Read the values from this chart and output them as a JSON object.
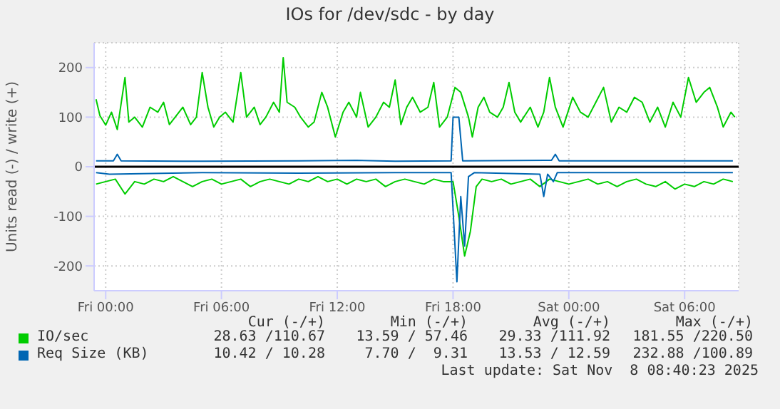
{
  "chart_data": {
    "type": "line",
    "title": "IOs for /dev/sdc - by day",
    "ylabel": "Units read (-) / write (+)",
    "xlim": [
      "2025-11-06T23:24",
      "2025-11-08T08:48"
    ],
    "xticks": [
      {
        "value": "2025-11-07T00:00",
        "label": "Fri 00:00"
      },
      {
        "value": "2025-11-07T06:00",
        "label": "Fri 06:00"
      },
      {
        "value": "2025-11-07T12:00",
        "label": "Fri 12:00"
      },
      {
        "value": "2025-11-07T18:00",
        "label": "Fri 18:00"
      },
      {
        "value": "2025-11-08T00:00",
        "label": "Sat 00:00"
      },
      {
        "value": "2025-11-08T06:00",
        "label": "Sat 06:00"
      }
    ],
    "ylim": [
      -250,
      250
    ],
    "yticks": [
      -200,
      -100,
      0,
      100,
      200
    ],
    "grid": true,
    "legend": "bottom",
    "ref_lines": [
      {
        "axis": "y",
        "value": 0,
        "color": "#000000"
      }
    ],
    "series": [
      {
        "name": "IO/sec",
        "color": "#00cc00",
        "x": [
          "2025-11-06T23:30",
          "2025-11-06T23:42",
          "2025-11-07T00:00",
          "2025-11-07T00:18",
          "2025-11-07T00:36",
          "2025-11-07T01:00",
          "2025-11-07T01:12",
          "2025-11-07T01:30",
          "2025-11-07T01:54",
          "2025-11-07T02:18",
          "2025-11-07T02:42",
          "2025-11-07T03:00",
          "2025-11-07T03:18",
          "2025-11-07T03:36",
          "2025-11-07T04:00",
          "2025-11-07T04:24",
          "2025-11-07T04:42",
          "2025-11-07T05:00",
          "2025-11-07T05:18",
          "2025-11-07T05:36",
          "2025-11-07T05:54",
          "2025-11-07T06:12",
          "2025-11-07T06:36",
          "2025-11-07T07:00",
          "2025-11-07T07:18",
          "2025-11-07T07:42",
          "2025-11-07T08:00",
          "2025-11-07T08:18",
          "2025-11-07T08:42",
          "2025-11-07T09:00",
          "2025-11-07T09:12",
          "2025-11-07T09:24",
          "2025-11-07T09:48",
          "2025-11-07T10:06",
          "2025-11-07T10:30",
          "2025-11-07T10:48",
          "2025-11-07T11:12",
          "2025-11-07T11:30",
          "2025-11-07T11:54",
          "2025-11-07T12:18",
          "2025-11-07T12:36",
          "2025-11-07T13:00",
          "2025-11-07T13:12",
          "2025-11-07T13:36",
          "2025-11-07T14:00",
          "2025-11-07T14:24",
          "2025-11-07T14:42",
          "2025-11-07T15:00",
          "2025-11-07T15:18",
          "2025-11-07T15:36",
          "2025-11-07T15:54",
          "2025-11-07T16:18",
          "2025-11-07T16:42",
          "2025-11-07T17:00",
          "2025-11-07T17:18",
          "2025-11-07T17:42",
          "2025-11-07T18:06",
          "2025-11-07T18:24",
          "2025-11-07T18:48",
          "2025-11-07T19:00",
          "2025-11-07T19:18",
          "2025-11-07T19:36",
          "2025-11-07T19:54",
          "2025-11-07T20:18",
          "2025-11-07T20:36",
          "2025-11-07T20:54",
          "2025-11-07T21:12",
          "2025-11-07T21:30",
          "2025-11-07T22:00",
          "2025-11-07T22:24",
          "2025-11-07T22:42",
          "2025-11-07T23:00",
          "2025-11-07T23:18",
          "2025-11-07T23:42",
          "2025-11-08T00:12",
          "2025-11-08T00:36",
          "2025-11-08T01:00",
          "2025-11-08T01:24",
          "2025-11-08T01:48",
          "2025-11-08T02:12",
          "2025-11-08T02:36",
          "2025-11-08T03:00",
          "2025-11-08T03:24",
          "2025-11-08T03:48",
          "2025-11-08T04:12",
          "2025-11-08T04:36",
          "2025-11-08T05:00",
          "2025-11-08T05:24",
          "2025-11-08T05:48",
          "2025-11-08T06:12",
          "2025-11-08T06:36",
          "2025-11-08T07:00",
          "2025-11-08T07:18",
          "2025-11-08T07:42",
          "2025-11-08T08:00",
          "2025-11-08T08:24",
          "2025-11-08T08:36"
        ],
        "values": [
          136,
          103,
          84,
          110,
          75,
          180,
          90,
          100,
          80,
          120,
          110,
          130,
          85,
          100,
          120,
          85,
          100,
          190,
          120,
          80,
          100,
          110,
          90,
          190,
          100,
          120,
          85,
          100,
          130,
          110,
          220,
          130,
          120,
          100,
          80,
          90,
          150,
          120,
          60,
          110,
          130,
          100,
          150,
          80,
          100,
          130,
          120,
          175,
          85,
          120,
          140,
          110,
          120,
          170,
          80,
          100,
          160,
          150,
          100,
          60,
          120,
          140,
          110,
          100,
          120,
          170,
          110,
          90,
          120,
          80,
          110,
          180,
          120,
          80,
          140,
          110,
          100,
          130,
          160,
          90,
          120,
          110,
          140,
          130,
          90,
          120,
          80,
          130,
          100,
          180,
          130,
          150,
          160,
          120,
          80,
          110,
          100
        ]
      },
      {
        "color": "#00cc00",
        "x": [
          "2025-11-06T23:30",
          "2025-11-07T00:00",
          "2025-11-07T00:30",
          "2025-11-07T01:00",
          "2025-11-07T01:30",
          "2025-11-07T02:00",
          "2025-11-07T02:30",
          "2025-11-07T03:00",
          "2025-11-07T03:30",
          "2025-11-07T04:00",
          "2025-11-07T04:30",
          "2025-11-07T05:00",
          "2025-11-07T05:30",
          "2025-11-07T06:00",
          "2025-11-07T06:30",
          "2025-11-07T07:00",
          "2025-11-07T07:30",
          "2025-11-07T08:00",
          "2025-11-07T08:30",
          "2025-11-07T09:00",
          "2025-11-07T09:30",
          "2025-11-07T10:00",
          "2025-11-07T10:30",
          "2025-11-07T11:00",
          "2025-11-07T11:30",
          "2025-11-07T12:00",
          "2025-11-07T12:30",
          "2025-11-07T13:00",
          "2025-11-07T13:30",
          "2025-11-07T14:00",
          "2025-11-07T14:30",
          "2025-11-07T15:00",
          "2025-11-07T15:30",
          "2025-11-07T16:00",
          "2025-11-07T16:30",
          "2025-11-07T17:00",
          "2025-11-07T17:30",
          "2025-11-07T18:00",
          "2025-11-07T18:18",
          "2025-11-07T18:36",
          "2025-11-07T18:54",
          "2025-11-07T19:12",
          "2025-11-07T19:30",
          "2025-11-07T20:00",
          "2025-11-07T20:30",
          "2025-11-07T21:00",
          "2025-11-07T21:30",
          "2025-11-07T22:00",
          "2025-11-07T22:30",
          "2025-11-07T23:00",
          "2025-11-07T23:30",
          "2025-11-08T00:00",
          "2025-11-08T00:30",
          "2025-11-08T01:00",
          "2025-11-08T01:30",
          "2025-11-08T02:00",
          "2025-11-08T02:30",
          "2025-11-08T03:00",
          "2025-11-08T03:30",
          "2025-11-08T04:00",
          "2025-11-08T04:30",
          "2025-11-08T05:00",
          "2025-11-08T05:30",
          "2025-11-08T06:00",
          "2025-11-08T06:30",
          "2025-11-08T07:00",
          "2025-11-08T07:30",
          "2025-11-08T08:00",
          "2025-11-08T08:30"
        ],
        "values": [
          -35,
          -30,
          -25,
          -55,
          -30,
          -35,
          -25,
          -30,
          -20,
          -30,
          -40,
          -30,
          -25,
          -35,
          -30,
          -25,
          -40,
          -30,
          -25,
          -30,
          -35,
          -25,
          -30,
          -20,
          -30,
          -25,
          -35,
          -25,
          -30,
          -25,
          -40,
          -30,
          -25,
          -30,
          -35,
          -25,
          -30,
          -30,
          -100,
          -180,
          -130,
          -40,
          -25,
          -30,
          -25,
          -35,
          -30,
          -25,
          -40,
          -25,
          -30,
          -35,
          -30,
          -25,
          -35,
          -30,
          -40,
          -30,
          -25,
          -35,
          -40,
          -30,
          -45,
          -35,
          -40,
          -30,
          -35,
          -25,
          -30
        ]
      },
      {
        "name": "Req Size (KB)",
        "color": "#0066b3",
        "x": [
          "2025-11-06T23:30",
          "2025-11-07T00:24",
          "2025-11-07T00:36",
          "2025-11-07T00:48",
          "2025-11-07T05:00",
          "2025-11-07T10:00",
          "2025-11-07T13:00",
          "2025-11-07T15:00",
          "2025-11-07T17:54",
          "2025-11-07T18:00",
          "2025-11-07T18:18",
          "2025-11-07T18:30",
          "2025-11-07T23:06",
          "2025-11-07T23:18",
          "2025-11-07T23:30",
          "2025-11-08T04:00",
          "2025-11-08T08:30"
        ],
        "values": [
          12,
          12,
          25,
          12,
          11,
          12,
          13,
          11,
          12,
          100,
          100,
          12,
          13,
          25,
          12,
          12,
          12
        ]
      },
      {
        "color": "#0066b3",
        "x": [
          "2025-11-06T23:30",
          "2025-11-07T00:12",
          "2025-11-07T05:00",
          "2025-11-07T10:00",
          "2025-11-07T15:00",
          "2025-11-07T17:54",
          "2025-11-07T18:12",
          "2025-11-07T18:24",
          "2025-11-07T18:36",
          "2025-11-07T18:48",
          "2025-11-07T19:06",
          "2025-11-07T22:30",
          "2025-11-07T22:42",
          "2025-11-07T22:54",
          "2025-11-07T23:12",
          "2025-11-07T23:24",
          "2025-11-08T04:00",
          "2025-11-08T08:30"
        ],
        "values": [
          -12,
          -15,
          -12,
          -13,
          -12,
          -12,
          -232,
          -60,
          -160,
          -20,
          -12,
          -15,
          -60,
          -15,
          -30,
          -12,
          -12,
          -12
        ]
      }
    ],
    "annotations": [
      "Cur (-/+)",
      "Min (-/+)",
      "Avg (-/+)",
      "Max (-/+)",
      "28.63 /110.67",
      "13.59 / 57.46",
      "29.33 /111.92",
      "181.55 /220.50",
      "10.42 / 10.28",
      "7.70 /  9.31",
      "13.53 / 12.59",
      "232.88 /100.89",
      "Last update: Sat Nov  8 08:40:23 2025"
    ]
  }
}
